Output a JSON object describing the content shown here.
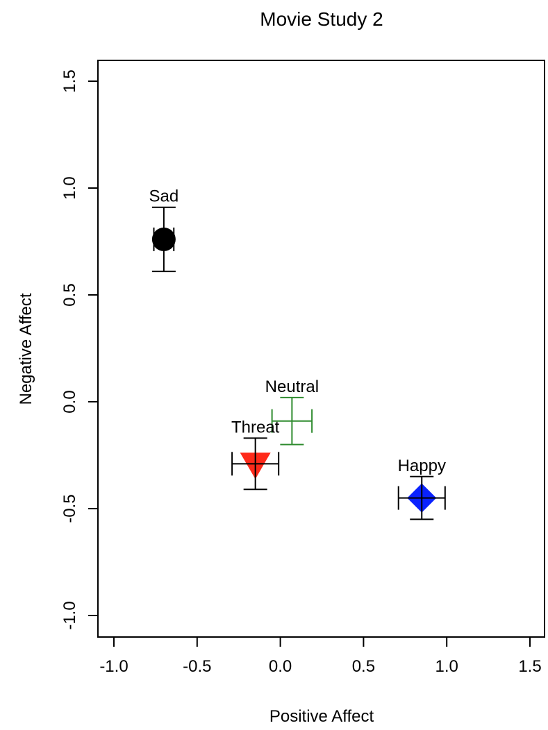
{
  "chart_data": {
    "type": "scatter",
    "title": "Movie Study 2",
    "xlabel": "Positive Affect",
    "ylabel": "Negative Affect",
    "xlim": [
      -1.1,
      1.6
    ],
    "ylim": [
      -1.1,
      1.6
    ],
    "x_ticks": [
      -1.0,
      -0.5,
      0.0,
      0.5,
      1.0,
      1.5
    ],
    "y_ticks": [
      -1.0,
      -0.5,
      0.0,
      0.5,
      1.0,
      1.5
    ],
    "x_tick_labels": [
      "-1.0",
      "-0.5",
      "0.0",
      "0.5",
      "1.0",
      "1.5"
    ],
    "y_tick_labels": [
      "-1.0",
      "-0.5",
      "0.0",
      "0.5",
      "1.0",
      "1.5"
    ],
    "grid": false,
    "points": [
      {
        "label": "Sad",
        "x": -0.7,
        "y": 0.76,
        "x_err": 0.06,
        "y_err": 0.15,
        "marker": "circle",
        "color": "#000000"
      },
      {
        "label": "Neutral",
        "x": 0.07,
        "y": -0.09,
        "x_err": 0.12,
        "y_err": 0.11,
        "marker": "plus",
        "color": "#2e8b2e"
      },
      {
        "label": "Threat",
        "x": -0.15,
        "y": -0.29,
        "x_err": 0.14,
        "y_err": 0.12,
        "marker": "triangle-down",
        "color": "#ff2a1a"
      },
      {
        "label": "Happy",
        "x": 0.85,
        "y": -0.45,
        "x_err": 0.14,
        "y_err": 0.1,
        "marker": "diamond",
        "color": "#0a22ff"
      }
    ]
  }
}
